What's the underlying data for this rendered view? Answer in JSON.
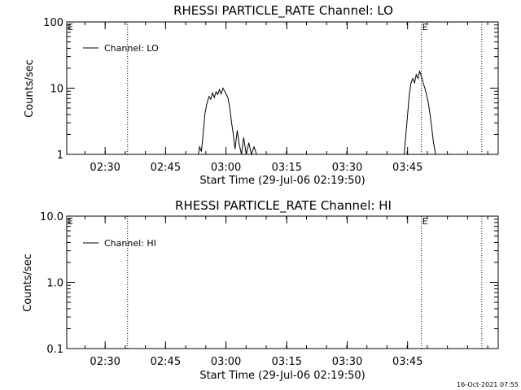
{
  "chart_data": [
    {
      "type": "line",
      "title": "RHESSI PARTICLE_RATE Channel: LO",
      "xlabel": "Start Time (29-Jul-06 02:19:50)",
      "ylabel": "Counts/sec",
      "yscale": "log",
      "ylim": [
        1,
        100
      ],
      "xlim": [
        0,
        100
      ],
      "xtick_labels": [
        "02:30",
        "02:45",
        "03:00",
        "03:15",
        "03:30",
        "03:45"
      ],
      "ytick_labels": [
        "1",
        "10",
        "100"
      ],
      "legend": "top-left",
      "grid": false,
      "event_markers": [
        {
          "label": "E",
          "x": 0
        },
        {
          "label": "E",
          "x": 82.2
        }
      ],
      "series": [
        {
          "name": "Channel: LO",
          "color": "#000000",
          "x": [
            30.5,
            30.8,
            31.2,
            31.6,
            32.0,
            32.5,
            33.0,
            33.4,
            33.8,
            34.2,
            34.6,
            35.0,
            35.4,
            35.8,
            36.2,
            36.6,
            37.0,
            37.4,
            37.8,
            38.2,
            38.6,
            39.0,
            39.5,
            40.0,
            40.5,
            41.0,
            41.6,
            42.2,
            42.8,
            43.4,
            44.0,
            78.2,
            78.6,
            79.0,
            79.4,
            79.8,
            80.2,
            80.6,
            81.0,
            81.4,
            81.8,
            82.2,
            82.6,
            83.0,
            83.4,
            83.8,
            84.2,
            84.6,
            85.0,
            85.5
          ],
          "values": [
            1,
            1.3,
            1.1,
            2.0,
            4.0,
            6.0,
            7.5,
            6.8,
            8.5,
            7.2,
            8.8,
            8.0,
            9.5,
            8.2,
            10.0,
            9.0,
            8.0,
            7.0,
            5.0,
            3.0,
            2.0,
            1.2,
            2.3,
            1.4,
            1.0,
            1.8,
            1.0,
            1.5,
            1.0,
            1.3,
            1.0,
            1,
            2.0,
            4.0,
            8.0,
            12.0,
            14.0,
            12.0,
            16.0,
            14.0,
            18.0,
            15.0,
            12.0,
            10.0,
            8.0,
            6.0,
            4.0,
            2.5,
            1.5,
            1.0
          ]
        }
      ]
    },
    {
      "type": "line",
      "title": "RHESSI PARTICLE_RATE Channel: HI",
      "xlabel": "Start Time (29-Jul-06 02:19:50)",
      "ylabel": "Counts/sec",
      "yscale": "log",
      "ylim": [
        0.1,
        10.0
      ],
      "xlim": [
        0,
        100
      ],
      "xtick_labels": [
        "02:30",
        "02:45",
        "03:00",
        "03:15",
        "03:30",
        "03:45"
      ],
      "ytick_labels": [
        "0.1",
        "1.0",
        "10.0"
      ],
      "legend": "top-left",
      "grid": false,
      "event_markers": [
        {
          "label": "E",
          "x": 0
        },
        {
          "label": "E",
          "x": 82.2
        }
      ],
      "series": [
        {
          "name": "Channel: HI",
          "color": "#000000",
          "x": [],
          "values": []
        }
      ]
    }
  ],
  "footer": {
    "timestamp": "16-Oct-2021 07:55"
  }
}
